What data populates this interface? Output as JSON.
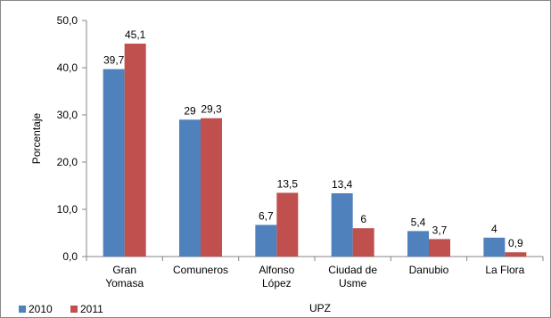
{
  "chart_data": {
    "type": "bar",
    "categories": [
      [
        "Gran",
        "Yomasa"
      ],
      [
        "Comuneros"
      ],
      [
        "Alfonso",
        "López"
      ],
      [
        "Ciudad de",
        "Usme"
      ],
      [
        "Danubio"
      ],
      [
        "La Flora"
      ]
    ],
    "series": [
      {
        "name": "2010",
        "color": "#4F81BD",
        "values": [
          39.7,
          29,
          6.7,
          13.4,
          5.4,
          4
        ],
        "labels": [
          "39,7",
          "29",
          "6,7",
          "13,4",
          "5,4",
          "4"
        ]
      },
      {
        "name": "2011",
        "color": "#C0504D",
        "values": [
          45.1,
          29.3,
          13.5,
          6,
          3.7,
          0.9
        ],
        "labels": [
          "45,1",
          "29,3",
          "13,5",
          "6",
          "3,7",
          "0,9"
        ]
      }
    ],
    "xlabel": "UPZ",
    "ylabel": "Porcentaje",
    "ylim": [
      0,
      50
    ],
    "yticks": [
      0,
      10,
      20,
      30,
      40,
      50
    ],
    "ytick_labels": [
      "0,0",
      "10,0",
      "20,0",
      "30,0",
      "40,0",
      "50,0"
    ],
    "grid": false,
    "legend_position": "bottom-left"
  }
}
